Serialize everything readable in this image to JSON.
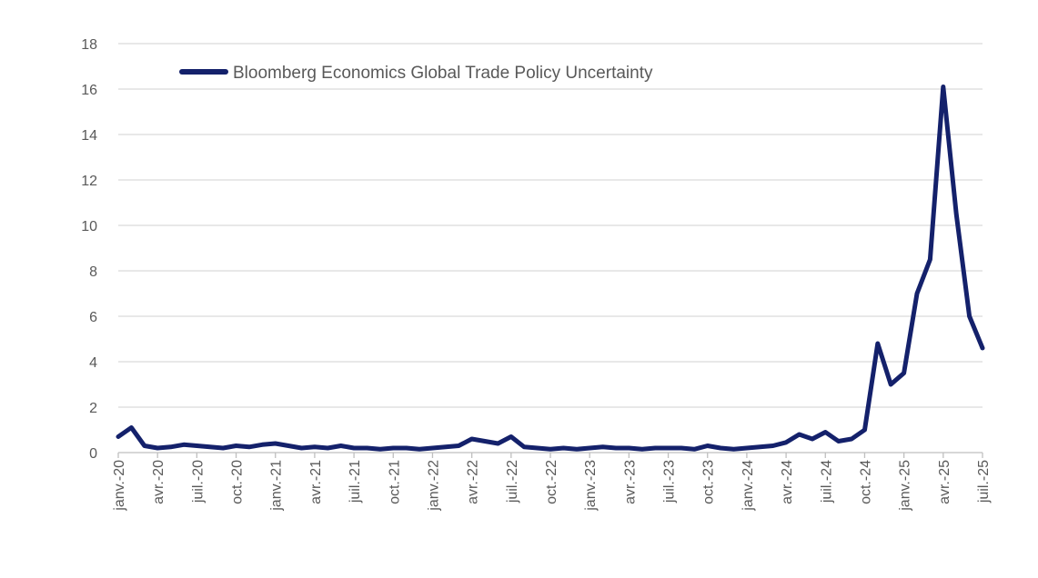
{
  "chart_data": {
    "type": "line",
    "title": "",
    "xlabel": "",
    "ylabel": "",
    "ylim": [
      0,
      18
    ],
    "yticks": [
      0,
      2,
      4,
      6,
      8,
      10,
      12,
      14,
      16,
      18
    ],
    "xticks": [
      "janv.-20",
      "avr.-20",
      "juil.-20",
      "oct.-20",
      "janv.-21",
      "avr.-21",
      "juil.-21",
      "oct.-21",
      "janv.-22",
      "avr.-22",
      "juil.-22",
      "oct.-22",
      "janv.-23",
      "avr.-23",
      "juil.-23",
      "oct.-23",
      "janv.-24",
      "avr.-24",
      "juil.-24",
      "oct.-24",
      "janv.-25",
      "avr.-25",
      "juil.-25"
    ],
    "grid": true,
    "legend_position": "top-left",
    "line_color": "#14216b",
    "series": [
      {
        "name": "Bloomberg Economics Global Trade Policy Uncertainty",
        "x": [
          "2020-01",
          "2020-02",
          "2020-03",
          "2020-04",
          "2020-05",
          "2020-06",
          "2020-07",
          "2020-08",
          "2020-09",
          "2020-10",
          "2020-11",
          "2020-12",
          "2021-01",
          "2021-02",
          "2021-03",
          "2021-04",
          "2021-05",
          "2021-06",
          "2021-07",
          "2021-08",
          "2021-09",
          "2021-10",
          "2021-11",
          "2021-12",
          "2022-01",
          "2022-02",
          "2022-03",
          "2022-04",
          "2022-05",
          "2022-06",
          "2022-07",
          "2022-08",
          "2022-09",
          "2022-10",
          "2022-11",
          "2022-12",
          "2023-01",
          "2023-02",
          "2023-03",
          "2023-04",
          "2023-05",
          "2023-06",
          "2023-07",
          "2023-08",
          "2023-09",
          "2023-10",
          "2023-11",
          "2023-12",
          "2024-01",
          "2024-02",
          "2024-03",
          "2024-04",
          "2024-05",
          "2024-06",
          "2024-07",
          "2024-08",
          "2024-09",
          "2024-10",
          "2024-11",
          "2024-12",
          "2025-01",
          "2025-02",
          "2025-03",
          "2025-04",
          "2025-05",
          "2025-06",
          "2025-07"
        ],
        "values": [
          0.7,
          1.1,
          0.3,
          0.2,
          0.25,
          0.35,
          0.3,
          0.25,
          0.2,
          0.3,
          0.25,
          0.35,
          0.4,
          0.3,
          0.2,
          0.25,
          0.2,
          0.3,
          0.2,
          0.2,
          0.15,
          0.2,
          0.2,
          0.15,
          0.2,
          0.25,
          0.3,
          0.6,
          0.5,
          0.4,
          0.7,
          0.25,
          0.2,
          0.15,
          0.2,
          0.15,
          0.2,
          0.25,
          0.2,
          0.2,
          0.15,
          0.2,
          0.2,
          0.2,
          0.15,
          0.3,
          0.2,
          0.15,
          0.2,
          0.25,
          0.3,
          0.45,
          0.8,
          0.6,
          0.9,
          0.5,
          0.6,
          1.0,
          4.8,
          3.0,
          3.5,
          7.0,
          8.5,
          16.1,
          10.5,
          6.0,
          4.6
        ]
      }
    ]
  }
}
